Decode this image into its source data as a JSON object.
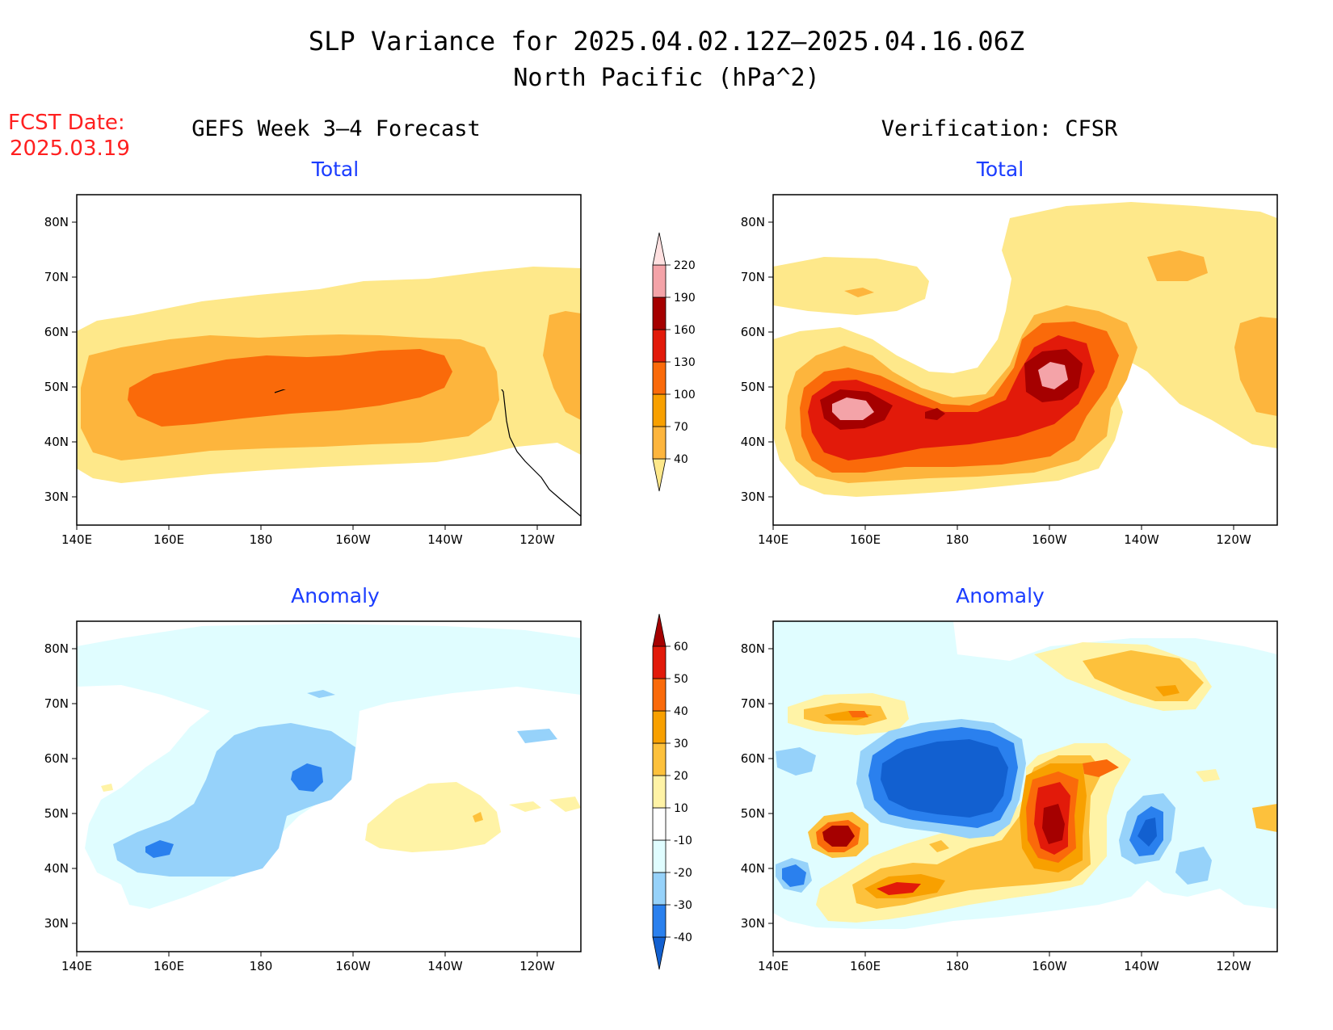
{
  "title": {
    "line1": "SLP Variance for 2025.04.02.12Z–2025.04.16.06Z",
    "line2": "North Pacific (hPa^2)"
  },
  "fcst": {
    "line1": "FCST Date:",
    "line2": "2025.03.19"
  },
  "columns": {
    "left": "GEFS Week 3–4 Forecast",
    "right": "Verification: CFSR"
  },
  "panels": {
    "total": "Total",
    "anomaly": "Anomaly"
  },
  "axes": {
    "lat_labels": [
      "80N",
      "70N",
      "60N",
      "50N",
      "40N",
      "30N"
    ],
    "lon_labels": [
      "140E",
      "160E",
      "180",
      "160W",
      "140W",
      "120W"
    ]
  },
  "colorbars": {
    "total": {
      "levels": [
        "40",
        "70",
        "100",
        "130",
        "160",
        "190",
        "220"
      ],
      "colors": [
        "#fee88a",
        "#fdb53d",
        "#f8a000",
        "#fa6a0a",
        "#e21a0a",
        "#a50000",
        "#f4a3a8",
        "#ffe0e0"
      ]
    },
    "anomaly": {
      "levels": [
        "-40",
        "-30",
        "-20",
        "-10",
        "10",
        "20",
        "30",
        "40",
        "50",
        "60"
      ],
      "colors": [
        "#1260d0",
        "#2a80ee",
        "#96d2fa",
        "#e0fdff",
        "#ffffff",
        "#fff3a6",
        "#fdc13c",
        "#f8a000",
        "#fa6a0a",
        "#e21a0a",
        "#a50000"
      ]
    }
  }
}
